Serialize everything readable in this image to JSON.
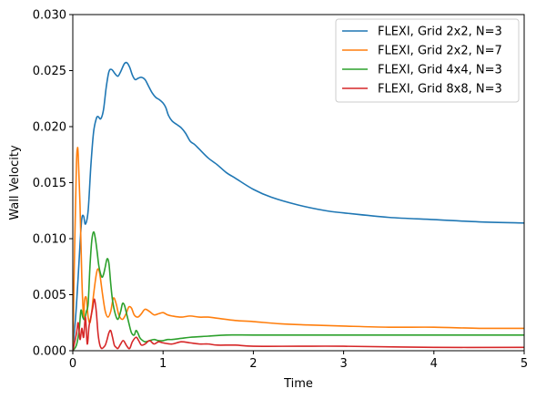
{
  "chart_data": {
    "type": "line",
    "title": "",
    "xlabel": "Time",
    "ylabel": "Wall Velocity",
    "xlim": [
      0,
      5
    ],
    "ylim": [
      0,
      0.03
    ],
    "x_ticks": [
      "0",
      "1",
      "2",
      "3",
      "4",
      "5"
    ],
    "x_tick_values": [
      0,
      1,
      2,
      3,
      4,
      5
    ],
    "y_ticks": [
      "0.000",
      "0.005",
      "0.010",
      "0.015",
      "0.020",
      "0.025",
      "0.030"
    ],
    "y_tick_values": [
      0,
      0.005,
      0.01,
      0.015,
      0.02,
      0.025,
      0.03
    ],
    "grid": false,
    "legend_position": "top-right",
    "series": [
      {
        "name": "FLEXI, Grid 2x2, N=3",
        "color": "#1f77b4",
        "x": [
          0,
          0.04,
          0.08,
          0.1,
          0.12,
          0.14,
          0.17,
          0.2,
          0.23,
          0.26,
          0.28,
          0.31,
          0.34,
          0.37,
          0.4,
          0.43,
          0.47,
          0.5,
          0.53,
          0.57,
          0.6,
          0.63,
          0.66,
          0.69,
          0.72,
          0.76,
          0.8,
          0.84,
          0.88,
          0.92,
          0.96,
          1.0,
          1.03,
          1.06,
          1.1,
          1.15,
          1.2,
          1.25,
          1.3,
          1.35,
          1.4,
          1.5,
          1.6,
          1.7,
          1.8,
          2.0,
          2.2,
          2.5,
          2.8,
          3.0,
          3.5,
          4.0,
          4.5,
          5.0
        ],
        "y": [
          0,
          0.004,
          0.0095,
          0.0118,
          0.012,
          0.0113,
          0.0125,
          0.0165,
          0.0195,
          0.0207,
          0.0209,
          0.0207,
          0.0215,
          0.0235,
          0.0249,
          0.0251,
          0.0247,
          0.0245,
          0.0249,
          0.0256,
          0.0257,
          0.0253,
          0.0246,
          0.0242,
          0.0243,
          0.0244,
          0.0242,
          0.0236,
          0.023,
          0.0226,
          0.0224,
          0.0221,
          0.0217,
          0.021,
          0.0205,
          0.0202,
          0.0199,
          0.0194,
          0.0187,
          0.0184,
          0.018,
          0.0172,
          0.0166,
          0.0159,
          0.0154,
          0.0144,
          0.0137,
          0.013,
          0.0125,
          0.0123,
          0.0119,
          0.0117,
          0.0115,
          0.0114
        ]
      },
      {
        "name": "FLEXI, Grid 2x2, N=7",
        "color": "#ff7f0e",
        "x": [
          0,
          0.02,
          0.04,
          0.05,
          0.06,
          0.08,
          0.1,
          0.12,
          0.13,
          0.15,
          0.17,
          0.19,
          0.21,
          0.23,
          0.26,
          0.28,
          0.3,
          0.33,
          0.36,
          0.39,
          0.42,
          0.45,
          0.48,
          0.51,
          0.55,
          0.59,
          0.62,
          0.65,
          0.68,
          0.72,
          0.76,
          0.8,
          0.85,
          0.9,
          0.95,
          1.0,
          1.05,
          1.1,
          1.2,
          1.3,
          1.4,
          1.5,
          1.6,
          1.8,
          2.0,
          2.3,
          2.6,
          3.0,
          3.5,
          4.0,
          4.5,
          5.0
        ],
        "y": [
          0,
          0.009,
          0.0165,
          0.018,
          0.0175,
          0.013,
          0.0065,
          0.003,
          0.0045,
          0.0047,
          0.003,
          0.0025,
          0.0035,
          0.005,
          0.0068,
          0.0073,
          0.0068,
          0.005,
          0.0035,
          0.003,
          0.0035,
          0.0047,
          0.0042,
          0.0032,
          0.0028,
          0.0033,
          0.0039,
          0.0038,
          0.0032,
          0.003,
          0.0033,
          0.0037,
          0.0035,
          0.0032,
          0.0033,
          0.0034,
          0.0032,
          0.0031,
          0.003,
          0.0031,
          0.003,
          0.003,
          0.0029,
          0.0027,
          0.0026,
          0.0024,
          0.0023,
          0.0022,
          0.0021,
          0.0021,
          0.002,
          0.002
        ]
      },
      {
        "name": "FLEXI, Grid 4x4, N=3",
        "color": "#2ca02c",
        "x": [
          0,
          0.04,
          0.07,
          0.09,
          0.11,
          0.13,
          0.15,
          0.17,
          0.19,
          0.21,
          0.23,
          0.25,
          0.27,
          0.29,
          0.32,
          0.34,
          0.36,
          0.38,
          0.4,
          0.42,
          0.44,
          0.47,
          0.5,
          0.53,
          0.55,
          0.57,
          0.59,
          0.62,
          0.65,
          0.68,
          0.7,
          0.72,
          0.74,
          0.76,
          0.8,
          0.85,
          0.9,
          0.95,
          1.0,
          1.05,
          1.1,
          1.2,
          1.3,
          1.5,
          1.7,
          2.0,
          2.5,
          3.0,
          4.0,
          5.0
        ],
        "y": [
          0,
          0.0005,
          0.0018,
          0.0036,
          0.003,
          0.0028,
          0.0035,
          0.0042,
          0.0075,
          0.0098,
          0.0106,
          0.01,
          0.0088,
          0.0075,
          0.0066,
          0.0068,
          0.0075,
          0.0082,
          0.0078,
          0.006,
          0.0045,
          0.0033,
          0.0028,
          0.0035,
          0.0042,
          0.0041,
          0.0035,
          0.0025,
          0.0016,
          0.0014,
          0.0018,
          0.0016,
          0.0012,
          0.001,
          0.0008,
          0.0009,
          0.001,
          0.0009,
          0.0009,
          0.001,
          0.001,
          0.0011,
          0.0012,
          0.0013,
          0.0014,
          0.0014,
          0.0014,
          0.0014,
          0.0014,
          0.0014
        ]
      },
      {
        "name": "FLEXI, Grid 8x8, N=3",
        "color": "#d62728",
        "x": [
          0,
          0.04,
          0.06,
          0.08,
          0.1,
          0.12,
          0.14,
          0.16,
          0.18,
          0.2,
          0.22,
          0.24,
          0.26,
          0.28,
          0.3,
          0.32,
          0.34,
          0.36,
          0.38,
          0.4,
          0.42,
          0.44,
          0.46,
          0.48,
          0.5,
          0.53,
          0.56,
          0.6,
          0.63,
          0.66,
          0.7,
          0.73,
          0.76,
          0.8,
          0.85,
          0.9,
          0.95,
          1.0,
          1.1,
          1.2,
          1.3,
          1.4,
          1.5,
          1.6,
          1.8,
          2.0,
          2.5,
          3.0,
          4.0,
          5.0
        ],
        "y": [
          0,
          0.0015,
          0.0025,
          0.001,
          0.002,
          0.0012,
          0.003,
          0.0006,
          0.0022,
          0.003,
          0.0038,
          0.0046,
          0.0035,
          0.0015,
          0.0005,
          0.0002,
          0.0003,
          0.0005,
          0.001,
          0.0016,
          0.0018,
          0.0012,
          0.0005,
          0.0003,
          0.0002,
          0.0006,
          0.0009,
          0.0004,
          0.0002,
          0.0008,
          0.0012,
          0.0009,
          0.0005,
          0.0006,
          0.0009,
          0.0006,
          0.0008,
          0.0007,
          0.0006,
          0.0008,
          0.0007,
          0.0006,
          0.0006,
          0.0005,
          0.0005,
          0.0004,
          0.0004,
          0.0004,
          0.0003,
          0.0003
        ]
      }
    ]
  }
}
